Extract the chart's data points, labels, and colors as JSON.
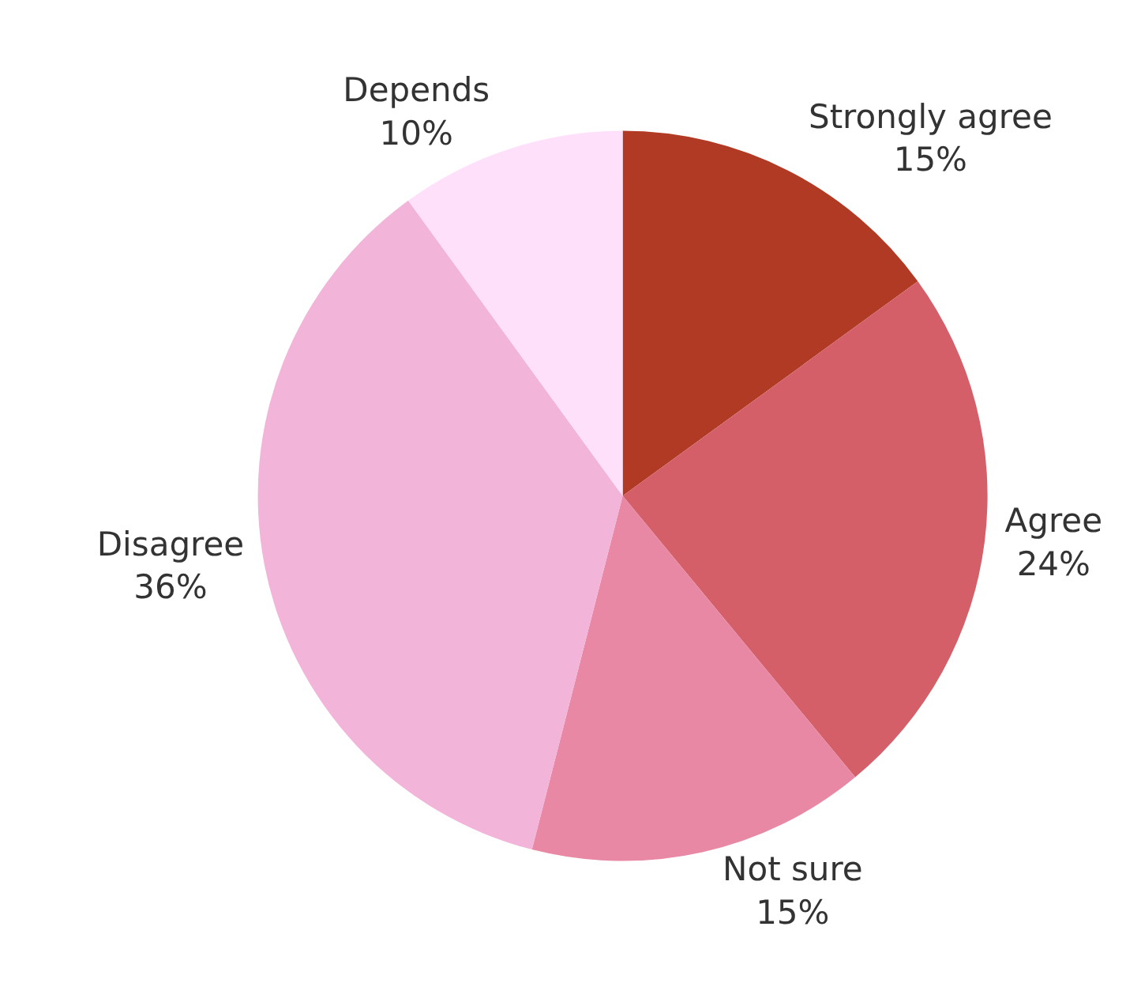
{
  "chart_data": {
    "type": "pie",
    "categories": [
      "Strongly agree",
      "Agree",
      "Not sure",
      "Disagree",
      "Depends"
    ],
    "values": [
      15,
      24,
      15,
      36,
      10
    ],
    "value_labels": [
      "15%",
      "24%",
      "15%",
      "36%",
      "10%"
    ],
    "colors": [
      "#b03a24",
      "#d45f68",
      "#e888a4",
      "#f2b4d8",
      "#ffe0fa"
    ],
    "legend": false
  }
}
